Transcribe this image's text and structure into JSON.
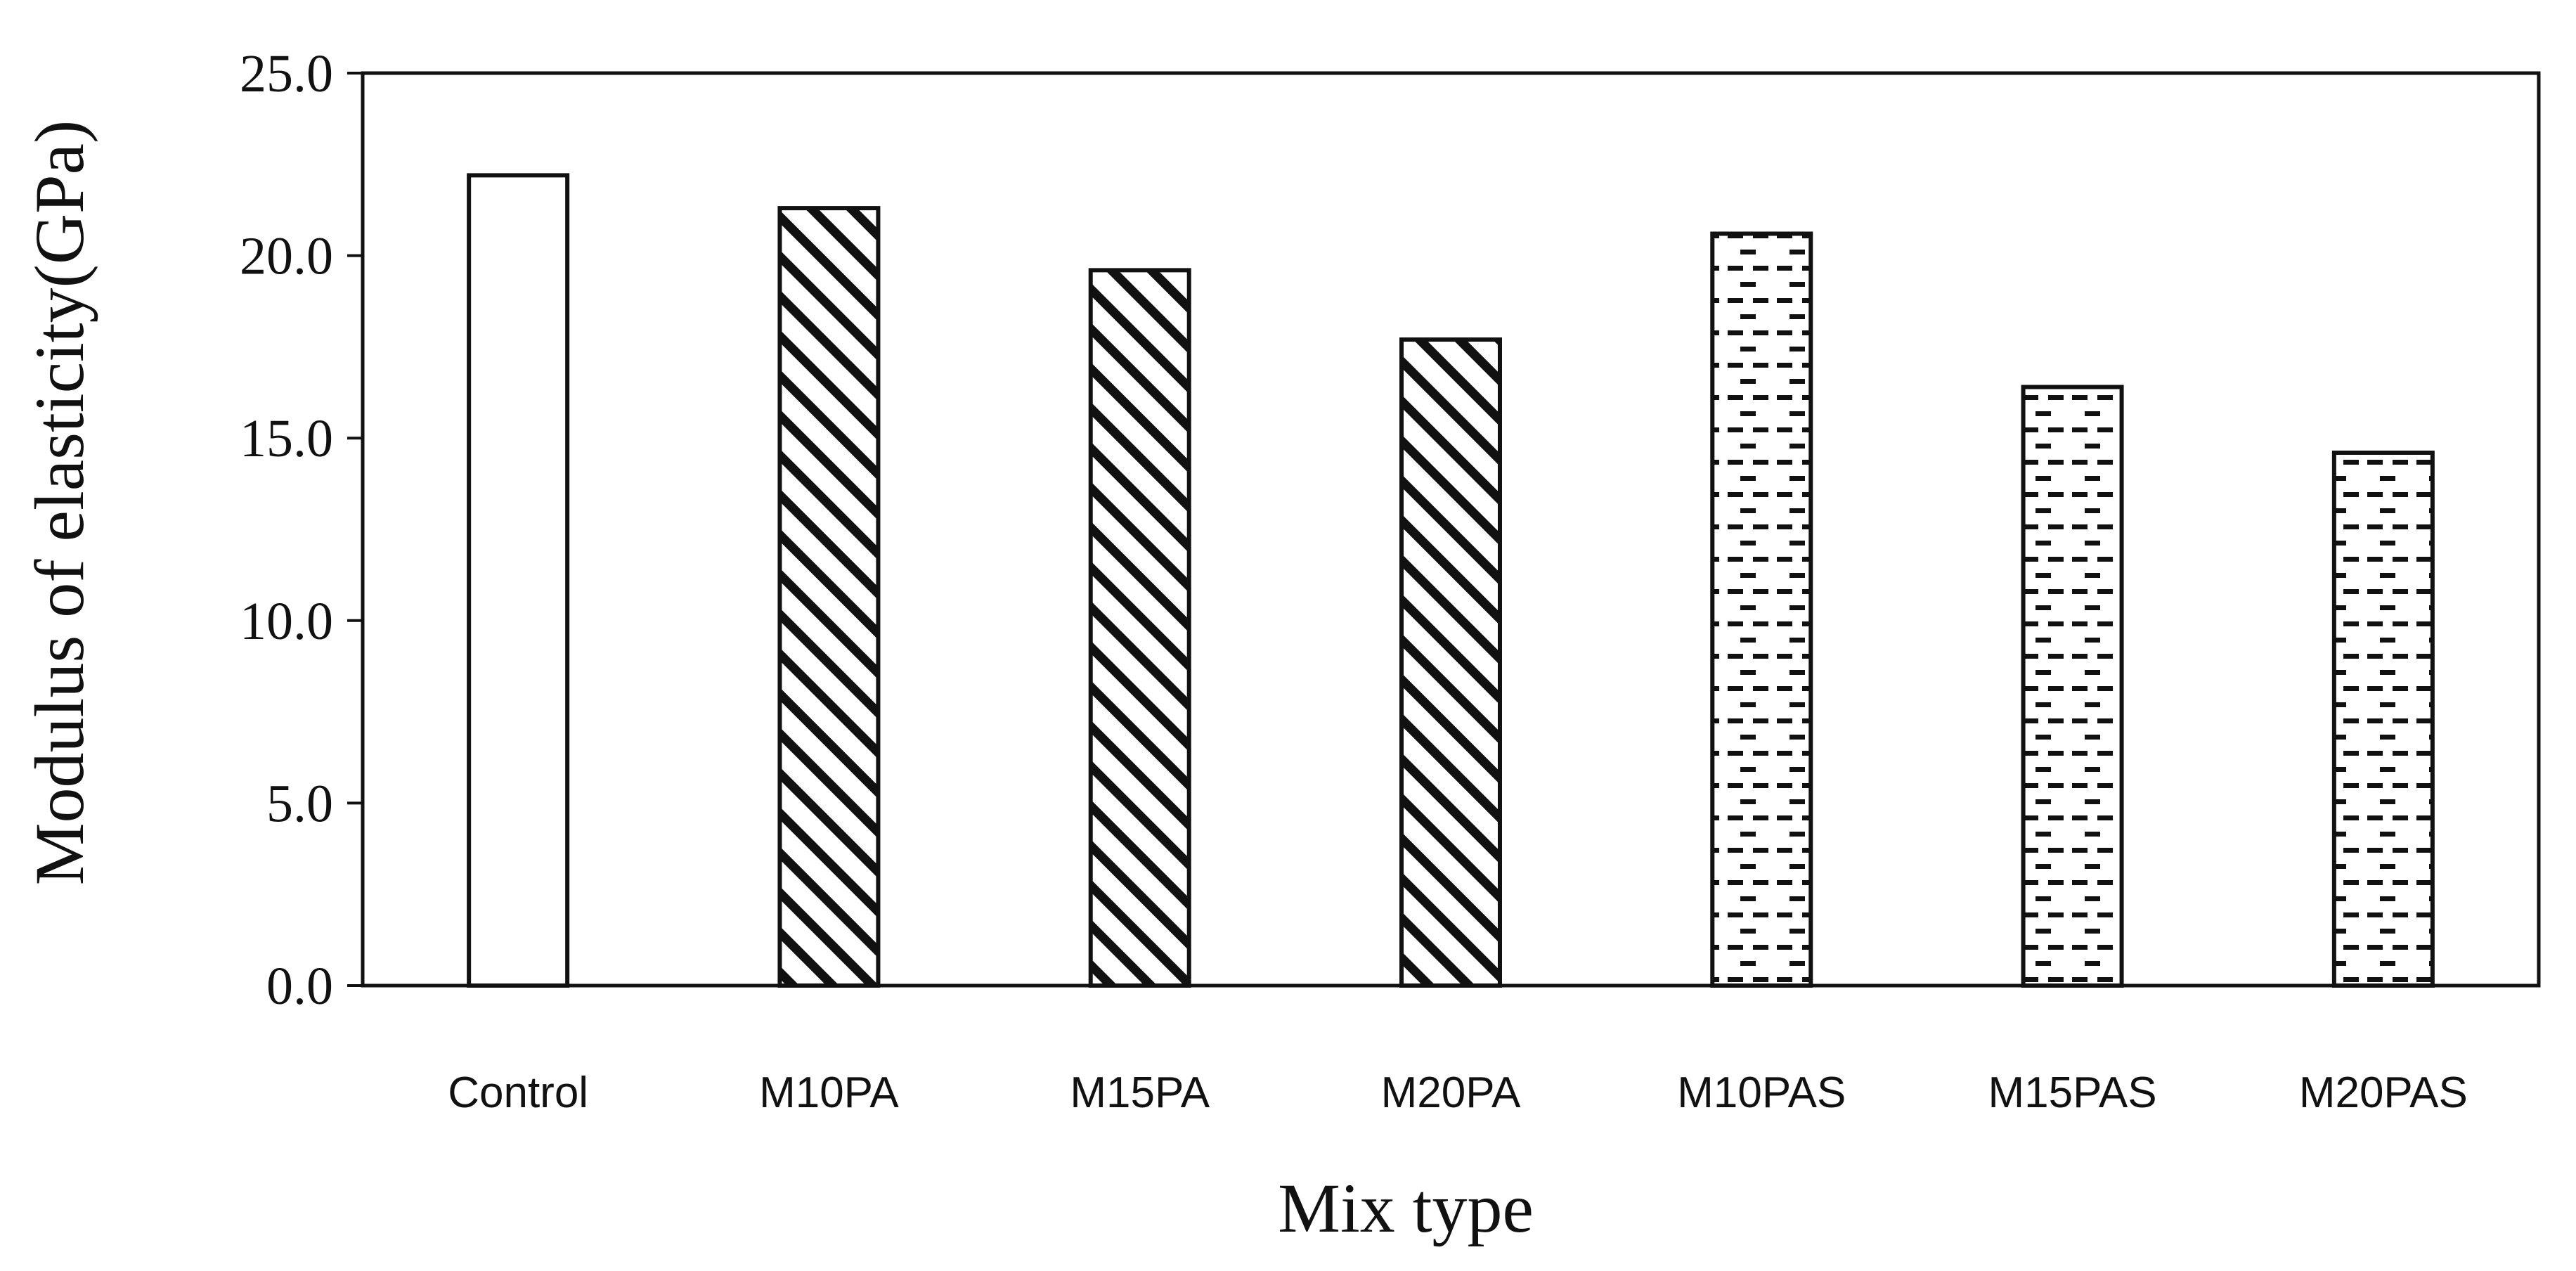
{
  "chart_data": {
    "type": "bar",
    "title": "",
    "xlabel": "Mix type",
    "ylabel": "Modulus of elasticity(GPa)",
    "categories": [
      "Control",
      "M10PA",
      "M15PA",
      "M20PA",
      "M10PAS",
      "M15PAS",
      "M20PAS"
    ],
    "values": [
      22.2,
      21.3,
      19.6,
      17.7,
      20.6,
      16.4,
      14.6
    ],
    "patterns": [
      "none",
      "diagonal-hatch",
      "diagonal-hatch",
      "diagonal-hatch",
      "dashes",
      "dashes",
      "dashes"
    ],
    "ylim": [
      0,
      25
    ],
    "yticks": [
      "0.0",
      "5.0",
      "10.0",
      "15.0",
      "20.0",
      "25.0"
    ],
    "grid": false,
    "legend": "none",
    "colors": {
      "bar_stroke": "#111111",
      "bar_fill": "#ffffff",
      "axis": "#111111"
    }
  }
}
